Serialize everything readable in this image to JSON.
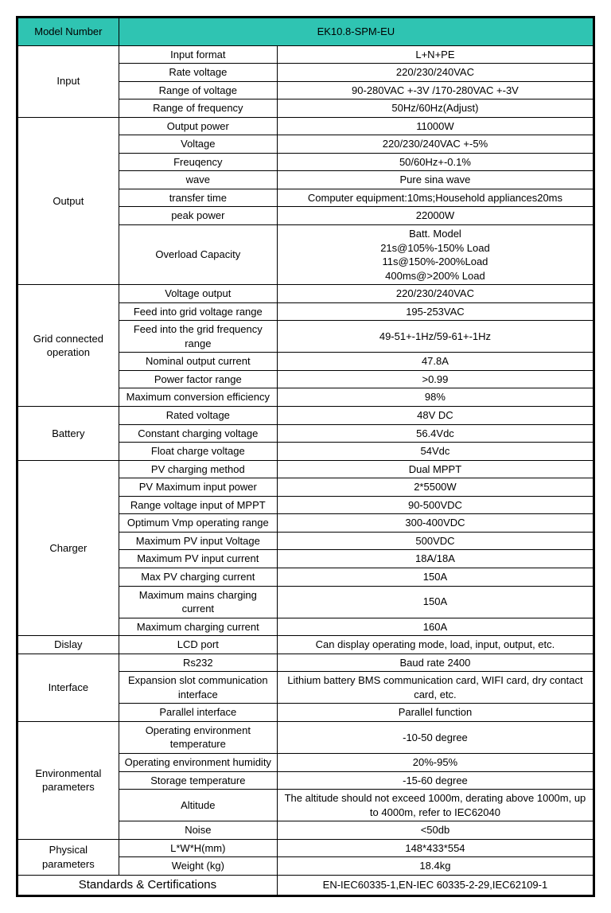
{
  "header": {
    "model_number_label": "Model Number",
    "model_number_value": "EK10.8-SPM-EU"
  },
  "colors": {
    "header_bg": "#2fc4b2",
    "border": "#000000",
    "text": "#000000"
  },
  "sections": [
    {
      "name": "Input",
      "rows": [
        {
          "param": "Input format",
          "value": "L+N+PE"
        },
        {
          "param": "Rate voltage",
          "value": "220/230/240VAC"
        },
        {
          "param": "Range of voltage",
          "value": "90-280VAC +-3V /170-280VAC +-3V"
        },
        {
          "param": "Range of frequency",
          "value": "50Hz/60Hz(Adjust)"
        }
      ]
    },
    {
      "name": "Output",
      "rows": [
        {
          "param": "Output power",
          "value": "11000W"
        },
        {
          "param": "Voltage",
          "value": "220/230/240VAC +-5%"
        },
        {
          "param": "Freuqency",
          "value": "50/60Hz+-0.1%"
        },
        {
          "param": "wave",
          "value": "Pure sina wave"
        },
        {
          "param": "transfer time",
          "value": "Computer equipment:10ms;Household appliances20ms"
        },
        {
          "param": "peak power",
          "value": "22000W"
        },
        {
          "param": "Overload Capacity",
          "value": "Batt. Model\n21s@105%-150% Load\n11s@150%-200%Load\n400ms@>200% Load"
        }
      ]
    },
    {
      "name": "Grid connected operation",
      "rows": [
        {
          "param": "Voltage output",
          "value": "220/230/240VAC"
        },
        {
          "param": "Feed into grid voltage range",
          "value": "195-253VAC"
        },
        {
          "param": "Feed into the grid frequency range",
          "value": "49-51+-1Hz/59-61+-1Hz"
        },
        {
          "param": "Nominal output current",
          "value": "47.8A"
        },
        {
          "param": "Power factor range",
          "value": ">0.99"
        },
        {
          "param": "Maximum conversion efficiency",
          "value": "98%"
        }
      ]
    },
    {
      "name": "Battery",
      "rows": [
        {
          "param": "Rated voltage",
          "value": "48V DC"
        },
        {
          "param": "Constant charging voltage",
          "value": "56.4Vdc"
        },
        {
          "param": "Float charge voltage",
          "value": "54Vdc"
        }
      ]
    },
    {
      "name": "Charger",
      "rows": [
        {
          "param": "PV charging method",
          "value": "Dual MPPT"
        },
        {
          "param": "PV Maximum input power",
          "value": "2*5500W"
        },
        {
          "param": "Range voltage input of MPPT",
          "value": "90-500VDC"
        },
        {
          "param": "Optimum Vmp operating range",
          "value": "300-400VDC"
        },
        {
          "param": "Maximum PV input Voltage",
          "value": "500VDC"
        },
        {
          "param": "Maximum PV input current",
          "value": "18A/18A"
        },
        {
          "param": "Max PV charging current",
          "value": "150A"
        },
        {
          "param": "Maximum mains charging current",
          "value": "150A"
        },
        {
          "param": "Maximum charging current",
          "value": "160A"
        }
      ]
    },
    {
      "name": "Dislay",
      "rows": [
        {
          "param": "LCD port",
          "value": "Can display operating mode, load, input, output, etc."
        }
      ]
    },
    {
      "name": "Interface",
      "rows": [
        {
          "param": "Rs232",
          "value": "Baud rate 2400"
        },
        {
          "param": "Expansion slot communication interface",
          "value": "Lithium battery BMS communication card, WIFI card, dry contact card, etc."
        },
        {
          "param": "Parallel interface",
          "value": "Parallel function"
        }
      ]
    },
    {
      "name": "Environmental parameters",
      "rows": [
        {
          "param": "Operating environment temperature",
          "value": "-10-50 degree"
        },
        {
          "param": "Operating environment humidity",
          "value": "20%-95%"
        },
        {
          "param": "Storage temperature",
          "value": "-15-60 degree"
        },
        {
          "param": "Altitude",
          "value": "The altitude should not exceed 1000m, derating above 1000m, up to 4000m, refer to IEC62040"
        },
        {
          "param": "Noise",
          "value": "<50db"
        }
      ]
    },
    {
      "name": "Physical parameters",
      "rows": [
        {
          "param": "L*W*H(mm)",
          "value": "148*433*554"
        },
        {
          "param": "Weight (kg)",
          "value": "18.4kg"
        }
      ]
    }
  ],
  "standards": {
    "label": "Standards & Certifications",
    "value": "EN-IEC60335-1,EN-IEC 60335-2-29,IEC62109-1"
  }
}
